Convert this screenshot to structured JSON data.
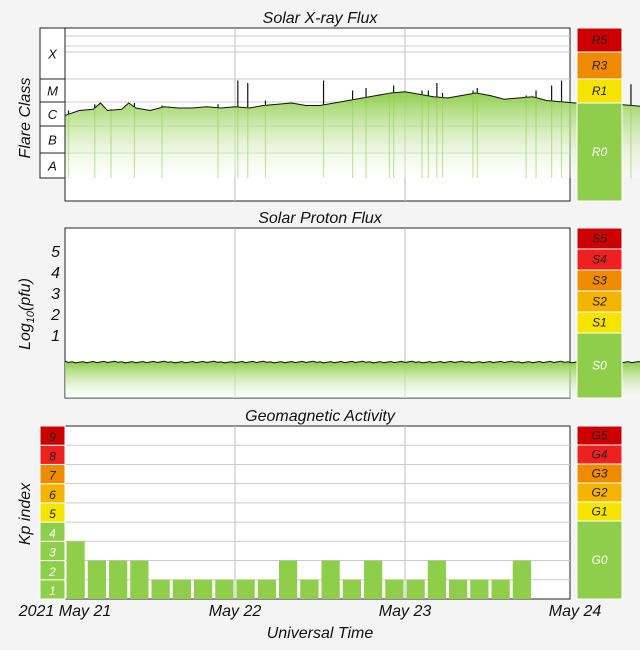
{
  "titles": {
    "xray": "Solar X-ray Flux",
    "proton": "Solar Proton Flux",
    "geomag": "Geomagnetic Activity"
  },
  "axes": {
    "xray_ylabel": "Flare Class",
    "proton_ylabel_main": "Log",
    "proton_ylabel_sub": "10",
    "proton_ylabel_unit": "(pfu)",
    "kp_ylabel": "Kp index",
    "xlabel": "Universal Time"
  },
  "x_ticks": [
    "2021 May 21",
    "May 22",
    "May 23",
    "May 24"
  ],
  "flare_classes": [
    "X",
    "M",
    "C",
    "B",
    "A"
  ],
  "proton_ticks": [
    "1",
    "2",
    "3",
    "4",
    "5"
  ],
  "kp_levels": [
    "1",
    "2",
    "3",
    "4",
    "5",
    "6",
    "7",
    "8",
    "9"
  ],
  "r_scale": [
    {
      "label": "R5",
      "color": "#cc0000"
    },
    {
      "label": "R3",
      "color": "#f08a00"
    },
    {
      "label": "R1",
      "color": "#f5e400"
    },
    {
      "label": "R0",
      "color": "#8fce4a"
    }
  ],
  "s_scale": [
    {
      "label": "S5",
      "color": "#cc0000"
    },
    {
      "label": "S4",
      "color": "#ee2020"
    },
    {
      "label": "S3",
      "color": "#f08a00"
    },
    {
      "label": "S2",
      "color": "#f5b400"
    },
    {
      "label": "S1",
      "color": "#f5e400"
    },
    {
      "label": "S0",
      "color": "#8fce4a"
    }
  ],
  "g_scale": [
    {
      "label": "G5",
      "color": "#cc0000"
    },
    {
      "label": "G4",
      "color": "#ee2020"
    },
    {
      "label": "G3",
      "color": "#f08a00"
    },
    {
      "label": "G2",
      "color": "#f5b400"
    },
    {
      "label": "G1",
      "color": "#f5e400"
    },
    {
      "label": "G0",
      "color": "#8fce4a"
    }
  ],
  "chart_data": [
    {
      "type": "area",
      "title": "Solar X-ray Flux",
      "ylabel": "Flare Class",
      "x_range": [
        "2021-05-21T00:00",
        "2021-05-24T00:00"
      ],
      "x_unit": "hours since 2021 May 21 00:00 UT",
      "y_scale": "log (flare class)",
      "points": [
        [
          0,
          3.5
        ],
        [
          2,
          3.7
        ],
        [
          4,
          3.75
        ],
        [
          5,
          4.0
        ],
        [
          6,
          3.7
        ],
        [
          8,
          3.75
        ],
        [
          9,
          4.0
        ],
        [
          10,
          3.8
        ],
        [
          12,
          3.7
        ],
        [
          14,
          3.85
        ],
        [
          16,
          3.8
        ],
        [
          18,
          3.8
        ],
        [
          20,
          3.85
        ],
        [
          22,
          3.8
        ],
        [
          24,
          3.85
        ],
        [
          26,
          3.8
        ],
        [
          28,
          3.9
        ],
        [
          30,
          3.95
        ],
        [
          32,
          4.0
        ],
        [
          34,
          3.9
        ],
        [
          36,
          3.9
        ],
        [
          38,
          4.0
        ],
        [
          40,
          4.1
        ],
        [
          42,
          4.2
        ],
        [
          44,
          4.3
        ],
        [
          46,
          4.4
        ],
        [
          48,
          4.45
        ],
        [
          50,
          4.35
        ],
        [
          52,
          4.25
        ],
        [
          54,
          4.2
        ],
        [
          56,
          4.3
        ],
        [
          58,
          4.4
        ],
        [
          60,
          4.3
        ],
        [
          62,
          4.15
        ],
        [
          64,
          4.2
        ],
        [
          66,
          4.25
        ],
        [
          68,
          4.1
        ],
        [
          70,
          4.05
        ],
        [
          72,
          4.0
        ],
        [
          74,
          4.05
        ],
        [
          76,
          4.05
        ],
        [
          78,
          3.95
        ],
        [
          80,
          3.9
        ],
        [
          82,
          3.85
        ],
        [
          84,
          3.85
        ]
      ],
      "peaks": [
        [
          0.5,
          3.7
        ],
        [
          4.2,
          3.95
        ],
        [
          6.5,
          3.75
        ],
        [
          9.8,
          4.0
        ],
        [
          13.7,
          3.9
        ],
        [
          21.6,
          3.95
        ],
        [
          24.4,
          4.9
        ],
        [
          25.8,
          4.8
        ],
        [
          28.3,
          4.1
        ],
        [
          36.5,
          4.9
        ],
        [
          40.6,
          4.5
        ],
        [
          42.5,
          4.6
        ],
        [
          45.8,
          4.4
        ],
        [
          46.4,
          4.7
        ],
        [
          50.4,
          4.5
        ],
        [
          51.3,
          4.5
        ],
        [
          52.5,
          4.8
        ],
        [
          53.3,
          4.4
        ],
        [
          57.6,
          4.5
        ],
        [
          58.2,
          4.6
        ],
        [
          65.1,
          4.3
        ],
        [
          66.5,
          4.5
        ],
        [
          68.7,
          4.7
        ],
        [
          70.1,
          4.9
        ],
        [
          72.8,
          4.6
        ],
        [
          79.9,
          4.75
        ],
        [
          82.3,
          4.2
        ]
      ]
    },
    {
      "type": "area",
      "title": "Solar Proton Flux",
      "ylabel": "Log10(pfu)",
      "x_range": [
        "2021-05-21T00:00",
        "2021-05-24T00:00"
      ],
      "x_unit": "hours since 2021 May 21 00:00 UT",
      "ylim": [
        -0.3,
        5.6
      ],
      "level": 0.05
    },
    {
      "type": "bar",
      "title": "Geomagnetic Activity",
      "ylabel": "Kp index",
      "x_range": [
        "2021-05-21T00:00",
        "2021-05-24T00:00"
      ],
      "interval_hours": 3,
      "ylim": [
        0,
        9
      ],
      "values": [
        3,
        2,
        2,
        2,
        1,
        1,
        1,
        1,
        1,
        1,
        2,
        1,
        2,
        1,
        2,
        1,
        1,
        2,
        1,
        1,
        1,
        2,
        0,
        0
      ]
    }
  ]
}
